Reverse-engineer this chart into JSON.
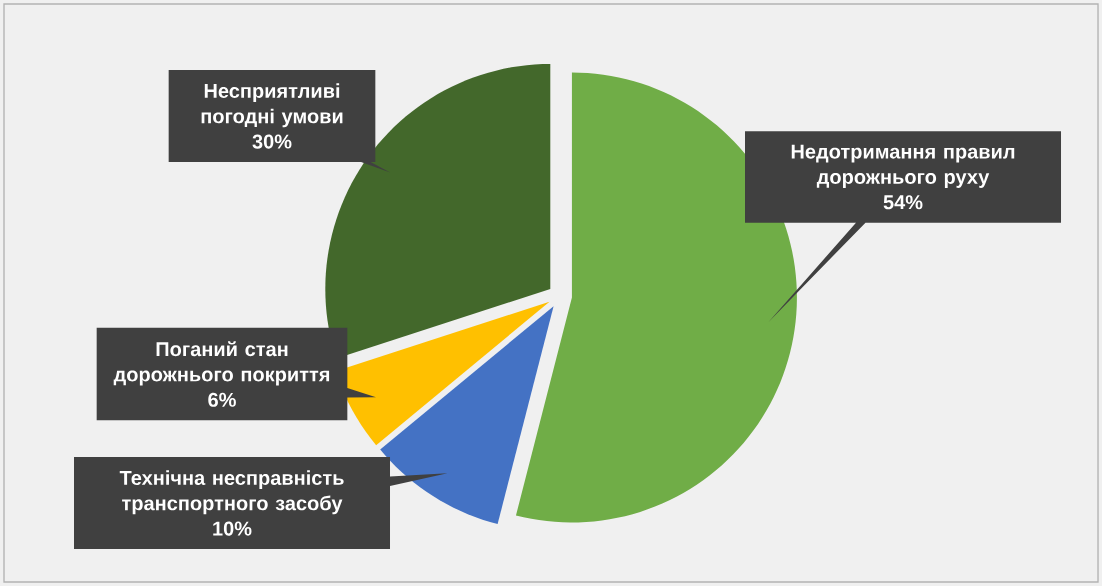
{
  "chart_data": {
    "type": "pie",
    "categories": [
      "Недотримання правил дорожнього руху",
      "Технічна несправність транспортного засобу",
      "Поганий стан дорожнього покриття",
      "Несприятливі погодні умови"
    ],
    "values": [
      54,
      10,
      6,
      30
    ],
    "value_labels": [
      "54%",
      "10%",
      "6%",
      "30%"
    ],
    "colors": [
      "#70ad47",
      "#4472c4",
      "#ffc000",
      "#43682b"
    ],
    "data_labels": true
  }
}
